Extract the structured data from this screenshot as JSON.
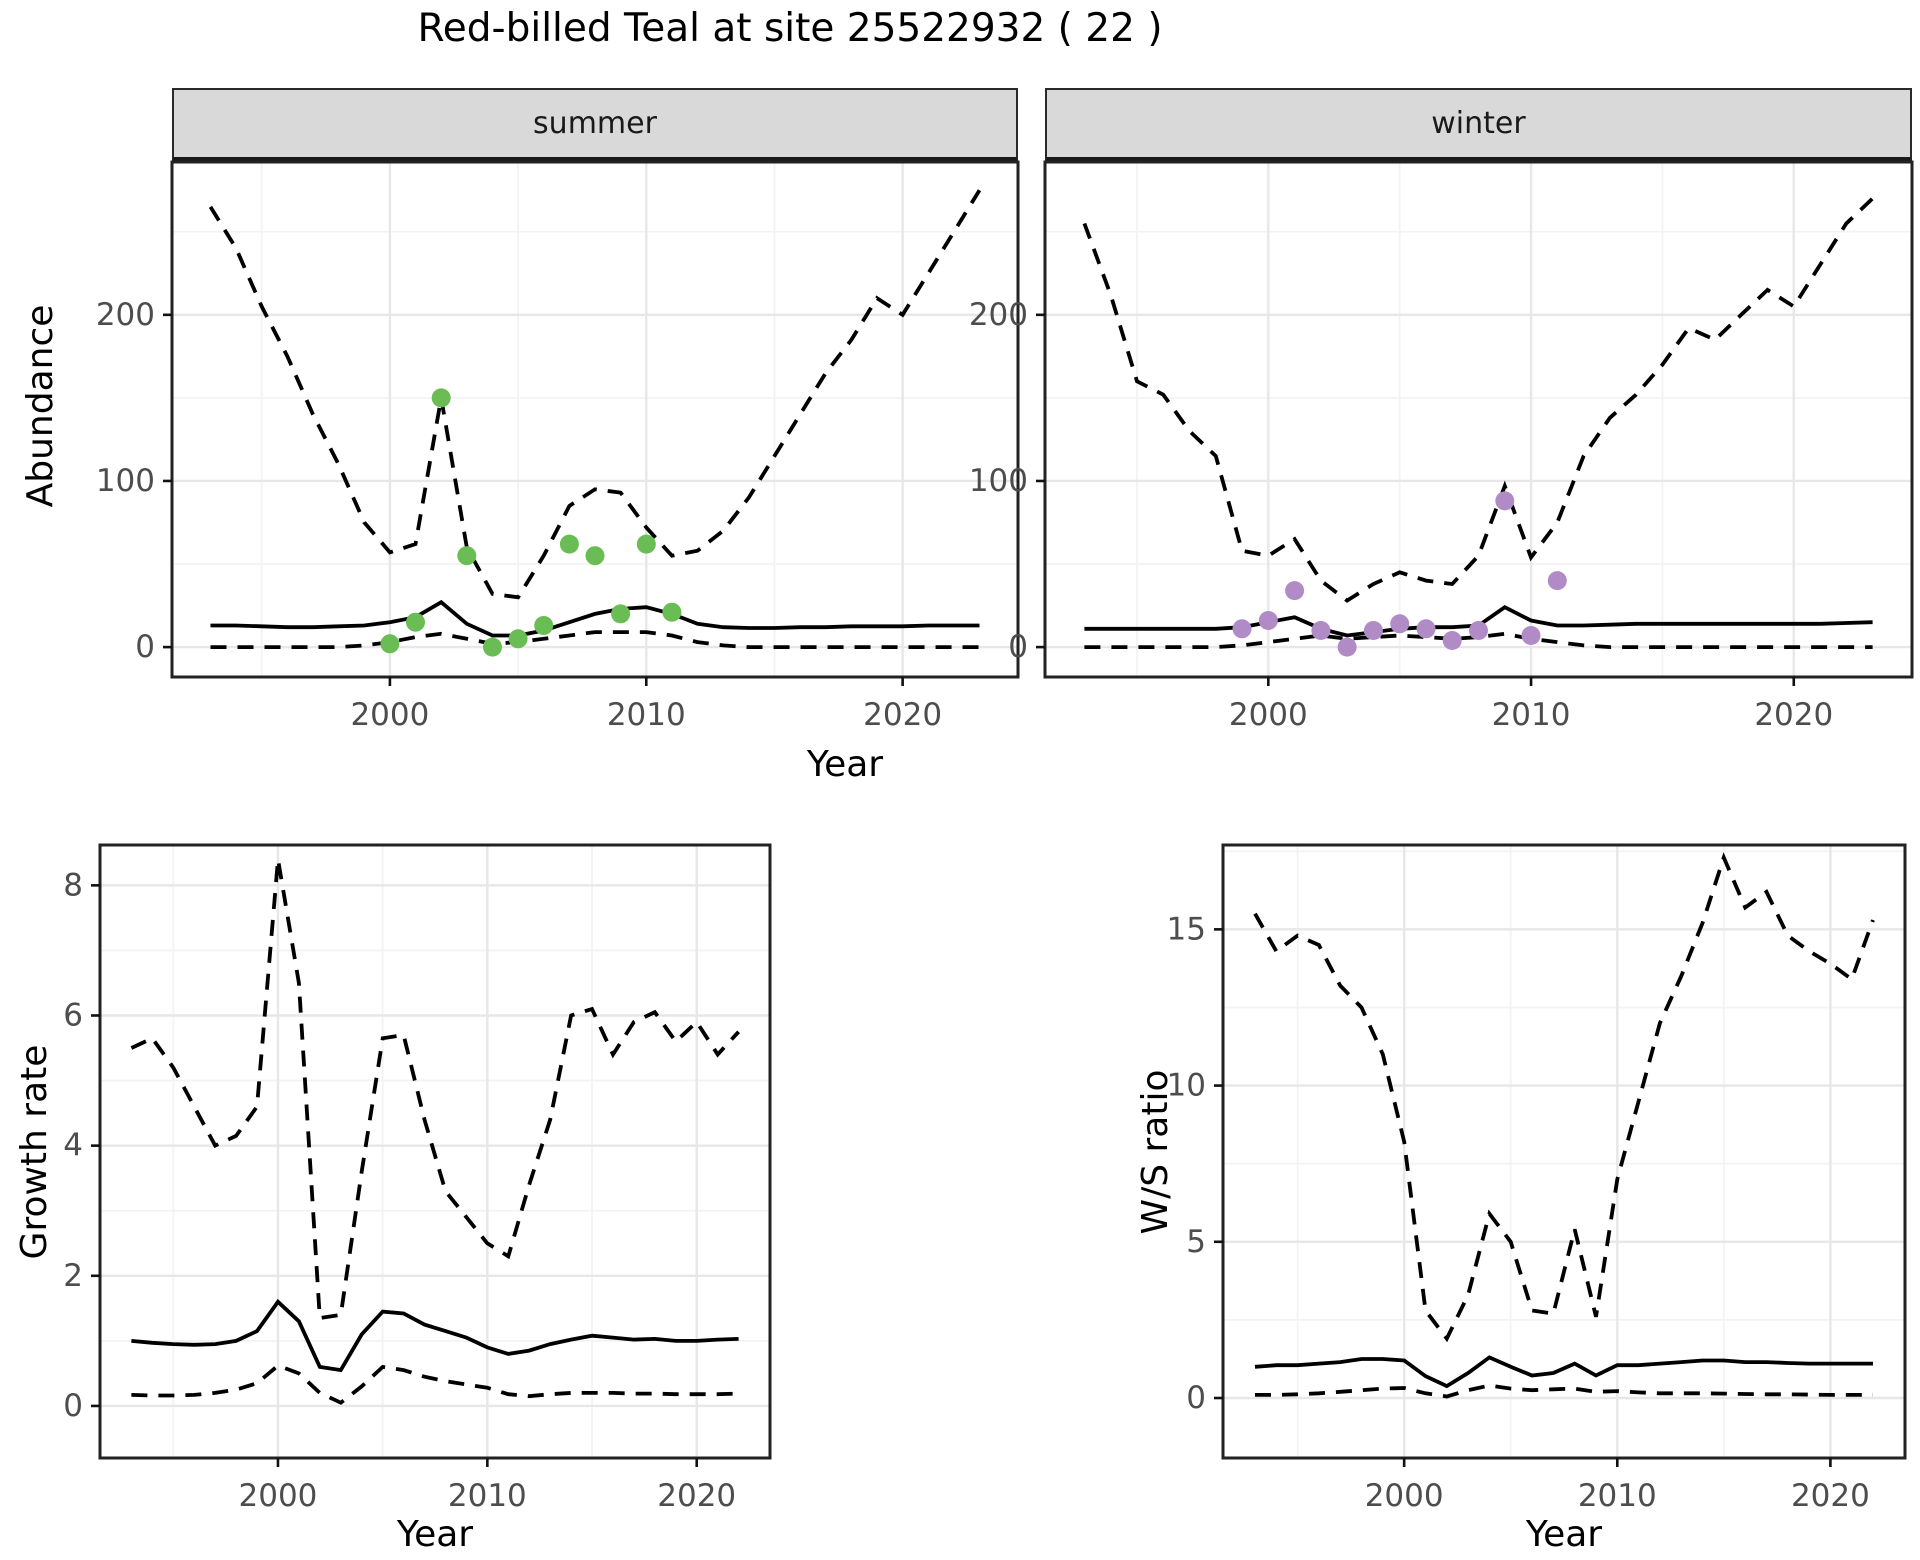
{
  "title": "Red-billed Teal at site 25522932 ( 22 )",
  "axes": {
    "abundance_label": "Abundance",
    "growth_label": "Growth rate",
    "ws_label": "W/S ratio",
    "year_label_top": "Year",
    "year_label_bottom_left": "Year",
    "year_label_bottom_right": "Year"
  },
  "facets": {
    "summer": "summer",
    "winter": "winter"
  },
  "colors": {
    "summer_point": "#6abd55",
    "winter_point": "#b18bc5",
    "line": "#000000",
    "grid_major": "#e7e7e7",
    "grid_minor": "#f3f3f3",
    "panel_border": "#222222",
    "strip_bg": "#d9d9d9",
    "tick_text": "#4d4d4d"
  },
  "chart_data": [
    {
      "id": "abundance_summer",
      "type": "line",
      "facet": "summer",
      "title": "Abundance - summer facet",
      "xlabel": "Year",
      "ylabel": "Abundance",
      "x": [
        1993,
        1994,
        1995,
        1996,
        1997,
        1998,
        1999,
        2000,
        2001,
        2002,
        2003,
        2004,
        2005,
        2006,
        2007,
        2008,
        2009,
        2010,
        2011,
        2012,
        2013,
        2014,
        2015,
        2016,
        2017,
        2018,
        2019,
        2020,
        2021,
        2022,
        2023
      ],
      "series": [
        {
          "name": "upper_95ci",
          "style": "dashed",
          "values": [
            265,
            240,
            205,
            175,
            140,
            110,
            75,
            57,
            62,
            150,
            60,
            32,
            30,
            55,
            85,
            95,
            93,
            72,
            55,
            58,
            70,
            90,
            115,
            140,
            165,
            185,
            210,
            200,
            225,
            250,
            275
          ]
        },
        {
          "name": "median",
          "style": "solid",
          "values": [
            13,
            13,
            12.5,
            12,
            12,
            12.5,
            13,
            15,
            18,
            27,
            14,
            7,
            7,
            10,
            15,
            20,
            23,
            24,
            20,
            14,
            12,
            11.5,
            11.5,
            12,
            12,
            12.5,
            12.5,
            12.5,
            13,
            13,
            13
          ]
        },
        {
          "name": "lower_95ci",
          "style": "dashed",
          "values": [
            0,
            0,
            0,
            0,
            0,
            0,
            1,
            3,
            6,
            8,
            5,
            2,
            3,
            5,
            7,
            9,
            9,
            9,
            7,
            3,
            1,
            0,
            0,
            0,
            0,
            0,
            0,
            0,
            0,
            0,
            0
          ]
        }
      ],
      "points": {
        "name": "observed_counts",
        "color_key": "summer_point",
        "x": [
          2000,
          2001,
          2002,
          2003,
          2004,
          2005,
          2006,
          2007,
          2008,
          2009,
          2010,
          2011
        ],
        "y": [
          2,
          15,
          150,
          55,
          0,
          5,
          13,
          62,
          55,
          20,
          62,
          21
        ]
      },
      "xlim": [
        1991.5,
        2024.5
      ],
      "ylim": [
        -18,
        292
      ],
      "xticks": [
        2000,
        2010,
        2020
      ],
      "yticks": [
        0,
        100,
        200
      ],
      "xminor": [
        1995,
        2005,
        2015
      ],
      "yminor": [
        50,
        150,
        250
      ],
      "grid": true,
      "legend": "none"
    },
    {
      "id": "abundance_winter",
      "type": "line",
      "facet": "winter",
      "title": "Abundance - winter facet",
      "xlabel": "Year",
      "ylabel": "Abundance",
      "x": [
        1993,
        1994,
        1995,
        1996,
        1997,
        1998,
        1999,
        2000,
        2001,
        2002,
        2003,
        2004,
        2005,
        2006,
        2007,
        2008,
        2009,
        2010,
        2011,
        2012,
        2013,
        2014,
        2015,
        2016,
        2017,
        2018,
        2019,
        2020,
        2021,
        2022,
        2023
      ],
      "series": [
        {
          "name": "upper_95ci",
          "style": "dashed",
          "values": [
            255,
            212,
            160,
            152,
            130,
            115,
            58,
            55,
            65,
            40,
            28,
            38,
            45,
            40,
            38,
            55,
            97,
            54,
            75,
            115,
            138,
            152,
            170,
            192,
            185,
            200,
            215,
            205,
            230,
            255,
            270
          ]
        },
        {
          "name": "median",
          "style": "solid",
          "values": [
            11,
            11,
            11,
            11,
            11,
            11,
            12,
            15,
            18,
            11,
            7,
            9,
            11,
            12,
            12,
            13,
            24,
            16,
            13,
            13,
            13.5,
            14,
            14,
            14,
            14,
            14,
            14,
            14,
            14,
            14.5,
            15
          ]
        },
        {
          "name": "lower_95ci",
          "style": "dashed",
          "values": [
            0,
            0,
            0,
            0,
            0,
            0,
            1,
            3,
            5,
            7,
            5,
            6,
            7,
            6,
            5,
            6,
            8,
            5,
            3,
            1,
            0,
            0,
            0,
            0,
            0,
            0,
            0,
            0,
            0,
            0,
            0
          ]
        }
      ],
      "points": {
        "name": "observed_counts",
        "color_key": "winter_point",
        "x": [
          1999,
          2000,
          2001,
          2002,
          2003,
          2004,
          2005,
          2006,
          2007,
          2008,
          2009,
          2010,
          2011
        ],
        "y": [
          11,
          16,
          34,
          10,
          0,
          10,
          14,
          11,
          4,
          10,
          88,
          7,
          40
        ]
      },
      "xlim": [
        1991.5,
        2024.5
      ],
      "ylim": [
        -18,
        292
      ],
      "xticks": [
        2000,
        2010,
        2020
      ],
      "yticks": [
        0,
        100,
        200
      ],
      "xminor": [
        1995,
        2005,
        2015
      ],
      "yminor": [
        50,
        150,
        250
      ],
      "grid": true,
      "legend": "none"
    },
    {
      "id": "growth_rate",
      "type": "line",
      "facet": null,
      "title": "Growth rate",
      "xlabel": "Year",
      "ylabel": "Growth rate",
      "x": [
        1993,
        1994,
        1995,
        1996,
        1997,
        1998,
        1999,
        2000,
        2001,
        2002,
        2003,
        2004,
        2005,
        2006,
        2007,
        2008,
        2009,
        2010,
        2011,
        2012,
        2013,
        2014,
        2015,
        2016,
        2017,
        2018,
        2019,
        2020,
        2021,
        2022
      ],
      "series": [
        {
          "name": "upper_95ci",
          "style": "dashed",
          "values": [
            5.5,
            5.65,
            5.2,
            4.6,
            4.0,
            4.15,
            4.6,
            8.4,
            6.5,
            1.35,
            1.4,
            3.6,
            5.65,
            5.7,
            4.4,
            3.3,
            2.9,
            2.5,
            2.3,
            3.4,
            4.4,
            6.0,
            6.1,
            5.4,
            5.9,
            6.05,
            5.6,
            5.9,
            5.4,
            5.75
          ]
        },
        {
          "name": "median",
          "style": "solid",
          "values": [
            1.0,
            0.97,
            0.95,
            0.94,
            0.95,
            1.0,
            1.15,
            1.6,
            1.3,
            0.6,
            0.55,
            1.1,
            1.45,
            1.42,
            1.25,
            1.15,
            1.05,
            0.9,
            0.8,
            0.85,
            0.95,
            1.02,
            1.08,
            1.05,
            1.02,
            1.03,
            1.0,
            1.0,
            1.02,
            1.03
          ]
        },
        {
          "name": "lower_95ci",
          "style": "dashed",
          "values": [
            0.17,
            0.16,
            0.16,
            0.17,
            0.2,
            0.25,
            0.35,
            0.62,
            0.5,
            0.2,
            0.05,
            0.3,
            0.6,
            0.55,
            0.45,
            0.38,
            0.33,
            0.28,
            0.18,
            0.15,
            0.18,
            0.2,
            0.2,
            0.2,
            0.19,
            0.19,
            0.18,
            0.18,
            0.18,
            0.19
          ]
        }
      ],
      "points": null,
      "xlim": [
        1991.5,
        2023.5
      ],
      "ylim": [
        -0.8,
        8.62
      ],
      "xticks": [
        2000,
        2010,
        2020
      ],
      "yticks": [
        0,
        2,
        4,
        6,
        8
      ],
      "xminor": [
        1995,
        2005,
        2015
      ],
      "yminor": [
        1,
        3,
        5,
        7
      ],
      "grid": true,
      "legend": "none"
    },
    {
      "id": "ws_ratio",
      "type": "line",
      "facet": null,
      "title": "W/S ratio",
      "xlabel": "Year",
      "ylabel": "W/S ratio",
      "x": [
        1993,
        1994,
        1995,
        1996,
        1997,
        1998,
        1999,
        2000,
        2001,
        2002,
        2003,
        2004,
        2005,
        2006,
        2007,
        2008,
        2009,
        2010,
        2011,
        2012,
        2013,
        2014,
        2015,
        2016,
        2017,
        2018,
        2019,
        2020,
        2021,
        2022
      ],
      "series": [
        {
          "name": "upper_95ci",
          "style": "dashed",
          "values": [
            15.5,
            14.3,
            14.8,
            14.5,
            13.2,
            12.5,
            11.0,
            8.2,
            2.8,
            1.9,
            3.3,
            5.9,
            5.0,
            2.8,
            2.7,
            5.4,
            2.6,
            7.0,
            9.5,
            12.0,
            13.5,
            15.2,
            17.3,
            15.7,
            16.2,
            14.8,
            14.3,
            13.9,
            13.4,
            15.3
          ]
        },
        {
          "name": "median",
          "style": "solid",
          "values": [
            1.0,
            1.05,
            1.05,
            1.1,
            1.15,
            1.25,
            1.25,
            1.2,
            0.7,
            0.38,
            0.8,
            1.3,
            1.0,
            0.72,
            0.8,
            1.1,
            0.72,
            1.05,
            1.05,
            1.1,
            1.15,
            1.2,
            1.2,
            1.15,
            1.15,
            1.12,
            1.1,
            1.1,
            1.1,
            1.1
          ]
        },
        {
          "name": "lower_95ci",
          "style": "dashed",
          "values": [
            0.1,
            0.1,
            0.12,
            0.15,
            0.2,
            0.25,
            0.3,
            0.32,
            0.15,
            0.05,
            0.25,
            0.4,
            0.3,
            0.25,
            0.28,
            0.3,
            0.2,
            0.22,
            0.18,
            0.15,
            0.15,
            0.15,
            0.14,
            0.13,
            0.12,
            0.12,
            0.11,
            0.1,
            0.1,
            0.1
          ]
        }
      ],
      "points": null,
      "xlim": [
        1991.5,
        2023.5
      ],
      "ylim": [
        -1.92,
        17.7
      ],
      "xticks": [
        2000,
        2010,
        2020
      ],
      "yticks": [
        0,
        5,
        10,
        15
      ],
      "xminor": [
        1995,
        2005,
        2015
      ],
      "yminor": [
        2.5,
        7.5,
        12.5,
        17.5
      ],
      "grid": true,
      "legend": "none"
    }
  ]
}
